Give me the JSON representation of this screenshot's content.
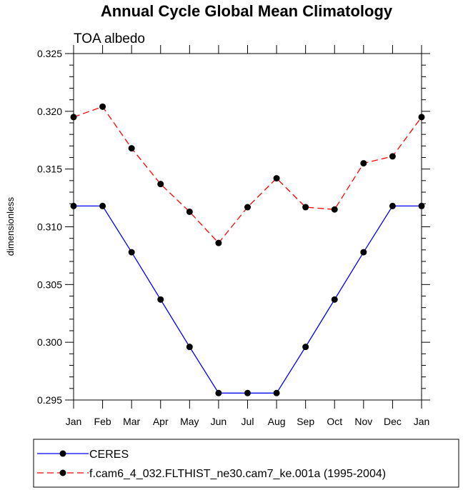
{
  "chart_data": {
    "type": "line",
    "title": "Annual Cycle Global Mean Climatology",
    "subtitle": "TOA albedo",
    "xlabel": "",
    "ylabel": "dimensionless",
    "ylim": [
      0.295,
      0.325
    ],
    "ytick_values": [
      0.295,
      0.3,
      0.305,
      0.31,
      0.315,
      0.32,
      0.325
    ],
    "ytick_labels": [
      "0.295",
      "0.300",
      "0.305",
      "0.310",
      "0.315",
      "0.320",
      "0.325"
    ],
    "categories": [
      "Jan",
      "Feb",
      "Mar",
      "Apr",
      "May",
      "Jun",
      "Jul",
      "Aug",
      "Sep",
      "Oct",
      "Nov",
      "Dec",
      "Jan"
    ],
    "series": [
      {
        "name": "CERES",
        "color": "#0000ff",
        "dash": "solid",
        "marker": "circle",
        "values": [
          0.3118,
          0.3118,
          0.3078,
          0.3037,
          0.2996,
          0.2956,
          0.2956,
          0.2956,
          0.2996,
          0.3037,
          0.3078,
          0.3118,
          0.3118
        ]
      },
      {
        "name": "f.cam6_4_032.FLTHIST_ne30.cam7_ke.001a (1995-2004)",
        "color": "#ff0000",
        "dash": "dashed",
        "marker": "circle",
        "values": [
          0.3195,
          0.3204,
          0.3168,
          0.3137,
          0.3113,
          0.3086,
          0.3117,
          0.3142,
          0.3117,
          0.3115,
          0.3155,
          0.3161,
          0.3195
        ]
      }
    ],
    "legend_position": "bottom"
  }
}
